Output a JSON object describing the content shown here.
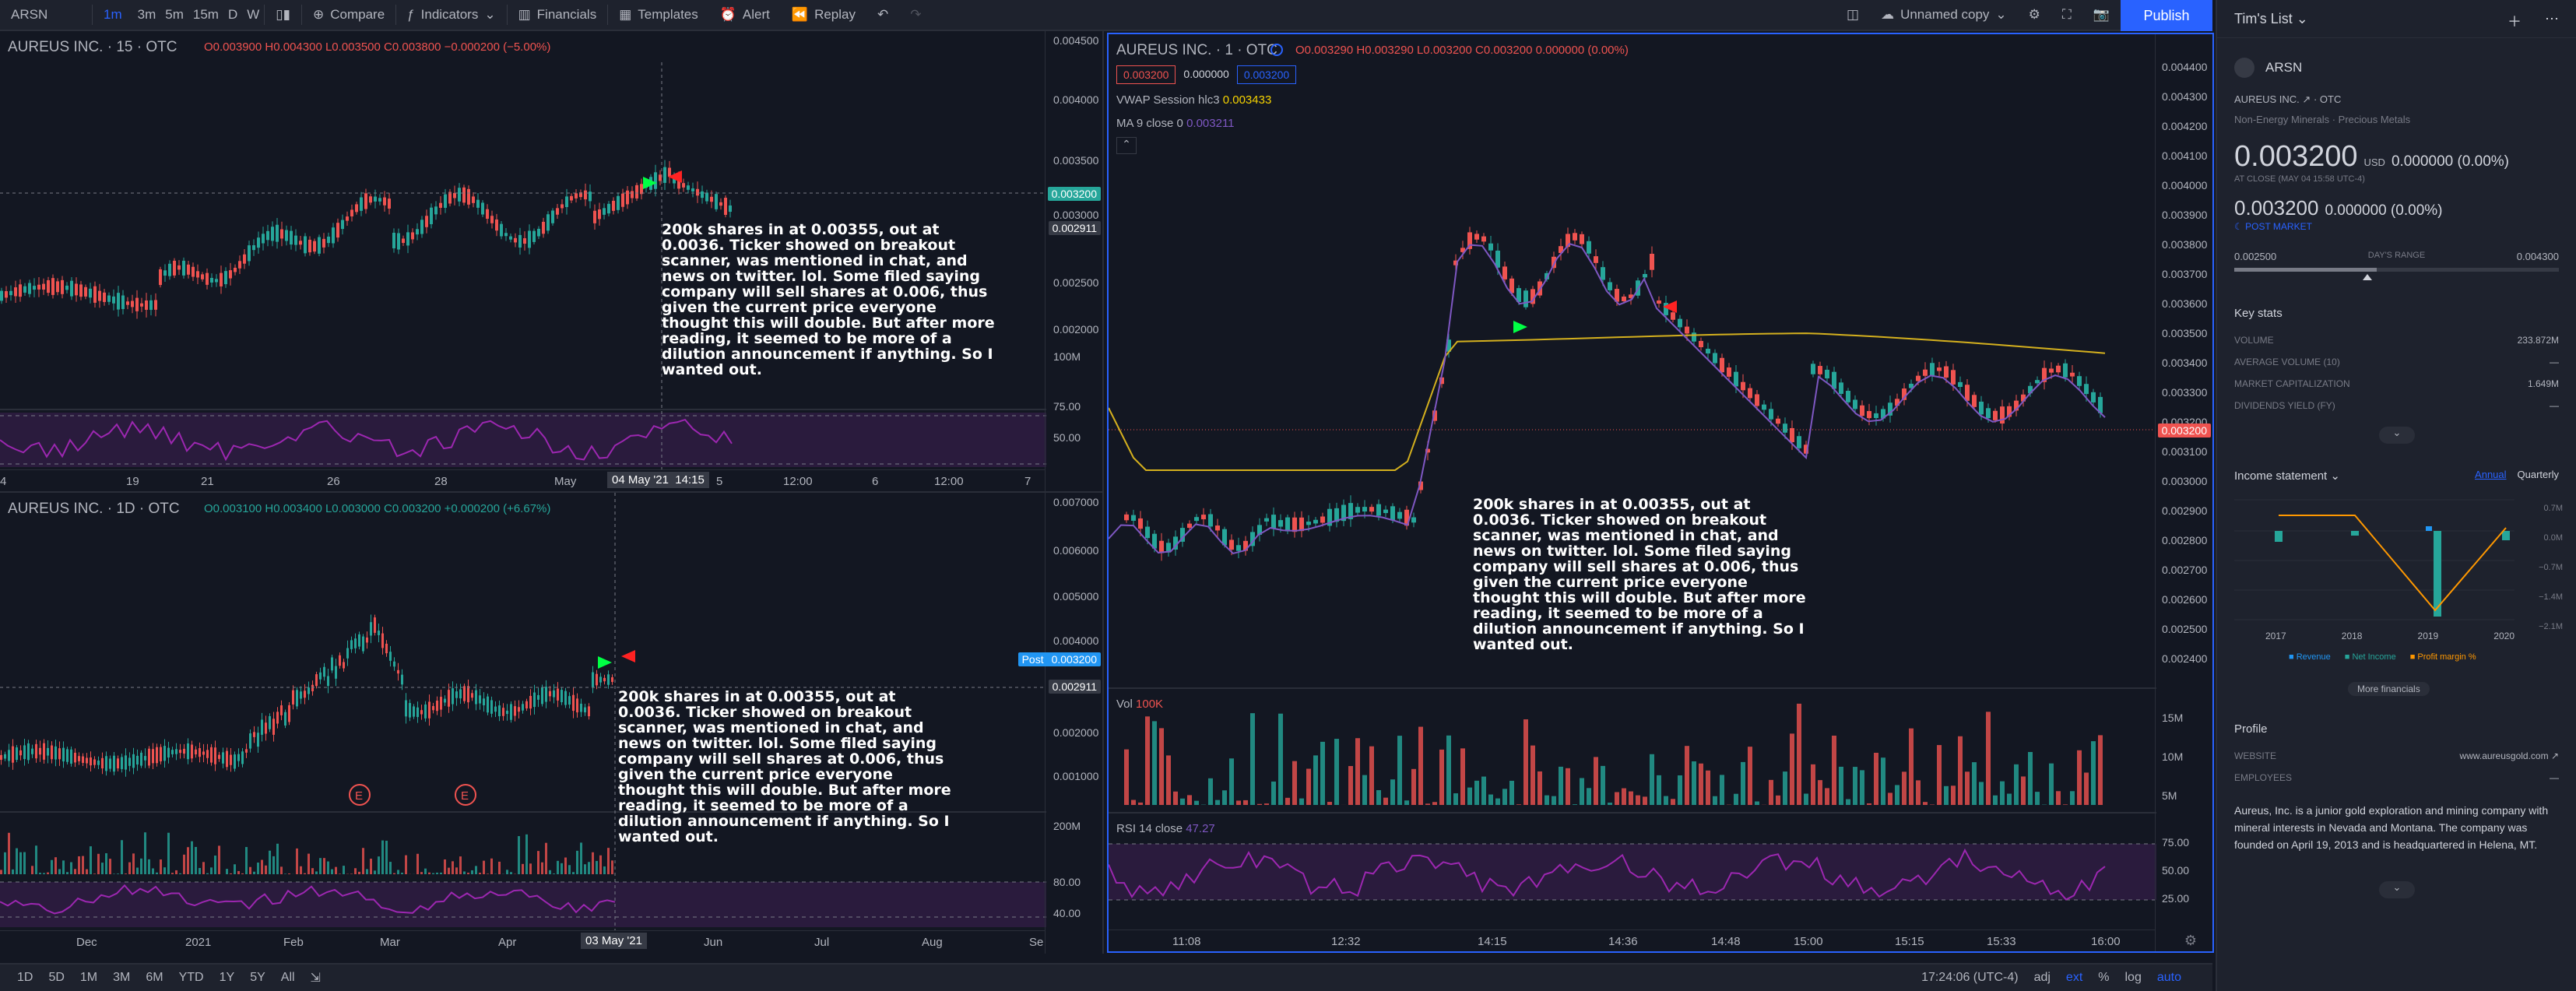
{
  "topbar": {
    "symbol": "ARSN",
    "intervals": [
      "1m",
      "3m",
      "5m",
      "15m",
      "D",
      "W"
    ],
    "compare": "Compare",
    "indicators": "Indicators",
    "financials": "Financials",
    "templates": "Templates",
    "alert": "Alert",
    "replay": "Replay",
    "layout_name": "Unnamed copy",
    "publish": "Publish"
  },
  "note_text": "200k shares in at 0.00355, out at 0.0036. Ticker showed on breakout scanner, was mentioned in chat, and news on twitter. lol. Some filed saying company will sell shares at 0.006, thus given the current price everyone thought this will double. But after more reading, it seemed to be more of a dilution announcement if anything. So I wanted out.",
  "panel_a": {
    "title": "AUREUS INC. · 15 · OTC",
    "ohlc": "O0.003900 H0.004300 L0.003500 C0.003800 −0.000200 (−5.00%)",
    "y_ticks": [
      "0.004500",
      "0.004000",
      "0.003500",
      "0.003200",
      "0.002911",
      "0.003000",
      "0.002500",
      "0.002000",
      "100M",
      "75.00",
      "50.00"
    ],
    "x_ticks": [
      "4",
      "19",
      "21",
      "26",
      "28",
      "May",
      "04 May '21",
      "14:15",
      "5",
      "12:00",
      "6",
      "12:00",
      "7"
    ],
    "tag_price": "0.003200",
    "tag_prev": "0.002911"
  },
  "panel_b": {
    "title": "AUREUS INC. · 1D · OTC",
    "ohlc": "O0.003100 H0.003400 L0.003000 C0.003200 +0.000200 (+6.67%)",
    "y_ticks": [
      "0.007000",
      "0.006000",
      "0.005000",
      "0.004000",
      "0.003200",
      "0.002911",
      "0.002000",
      "0.001000",
      "200M",
      "80.00",
      "40.00"
    ],
    "x_ticks": [
      "Dec",
      "2021",
      "Feb",
      "Mar",
      "Apr",
      "03 May '21",
      "Jun",
      "Jul",
      "Aug",
      "Se"
    ],
    "post_label": "Post",
    "tag_price": "0.003200",
    "tag_prev": "0.002911",
    "earnings": [
      "E",
      "E"
    ]
  },
  "panel_c": {
    "title": "AUREUS INC. · 1 · OTC",
    "ohlc": "O0.003290 H0.003290 L0.003200 C0.003200 0.000000 (0.00%)",
    "bid": "0.003200",
    "spread": "0.000000",
    "ask": "0.003200",
    "vwap_label": "VWAP Session hlc3",
    "vwap_value": "0.003433",
    "ma_label": "MA 9 close 0",
    "ma_value": "0.003211",
    "vol_label": "Vol",
    "vol_value": "100K",
    "rsi_label": "RSI 14 close",
    "rsi_value": "47.27",
    "y_ticks": [
      "0.004400",
      "0.004300",
      "0.004200",
      "0.004100",
      "0.004000",
      "0.003900",
      "0.003800",
      "0.003700",
      "0.003600",
      "0.003500",
      "0.003400",
      "0.003300",
      "0.003200",
      "0.003100",
      "0.003000",
      "0.002900",
      "0.002800",
      "0.002700",
      "0.002600",
      "0.002500",
      "0.002400"
    ],
    "vol_ticks": [
      "15M",
      "10M",
      "5M"
    ],
    "rsi_ticks": [
      "75.00",
      "50.00",
      "25.00"
    ],
    "x_ticks": [
      "11:08",
      "12:32",
      "14:15",
      "14:36",
      "14:48",
      "15:00",
      "15:15",
      "15:33",
      "16:00"
    ],
    "tag_price": "0.003200"
  },
  "bottombar": {
    "ranges": [
      "1D",
      "5D",
      "1M",
      "3M",
      "6M",
      "YTD",
      "1Y",
      "5Y",
      "All"
    ],
    "clock": "17:24:06 (UTC-4)",
    "adj": "adj",
    "ext": "ext",
    "pct": "%",
    "log": "log",
    "auto": "auto"
  },
  "sidebar": {
    "list_title": "Tim's List",
    "symbol": "ARSN",
    "company": "AUREUS INC.",
    "exchange": "OTC",
    "sector": "Non-Energy Minerals · Precious Metals",
    "price": "0.003200",
    "currency": "USD",
    "change": "0.000000 (0.00%)",
    "at_close": "AT CLOSE   (MAY 04 15:58 UTC-4)",
    "post_price": "0.003200",
    "post_change": "0.000000 (0.00%)",
    "post_market": "POST MARKET",
    "day_low": "0.002500",
    "day_range_label": "DAY'S RANGE",
    "day_high": "0.004300",
    "key_stats_title": "Key stats",
    "key_stats": [
      {
        "label": "VOLUME",
        "value": "233.872M"
      },
      {
        "label": "AVERAGE VOLUME (10)",
        "value": "—"
      },
      {
        "label": "MARKET CAPITALIZATION",
        "value": "1.649M"
      },
      {
        "label": "DIVIDENDS YIELD (FY)",
        "value": "—"
      }
    ],
    "income_title": "Income statement",
    "annual": "Annual",
    "quarterly": "Quarterly",
    "income_y": [
      "0.7M",
      "0.0M",
      "−0.7M",
      "−1.4M",
      "−2.1M"
    ],
    "income_years": [
      "2017",
      "2018",
      "2019",
      "2020"
    ],
    "legend": [
      "Revenue",
      "Net Income",
      "Profit margin %"
    ],
    "more_financials": "More financials",
    "profile_title": "Profile",
    "website_label": "WEBSITE",
    "website": "www.aureusgold.com",
    "employees_label": "EMPLOYEES",
    "employees": "—",
    "description": "Aureus, Inc. is a junior gold exploration and mining company with mineral interests in Nevada and Montana. The company was founded on April 19, 2013 and is headquartered in Helena, MT.",
    "colors": {
      "up": "#26a69a",
      "down": "#ef5350",
      "accent": "#2962ff",
      "rsi": "#7e57c2",
      "vwap": "#d4b01e"
    }
  }
}
